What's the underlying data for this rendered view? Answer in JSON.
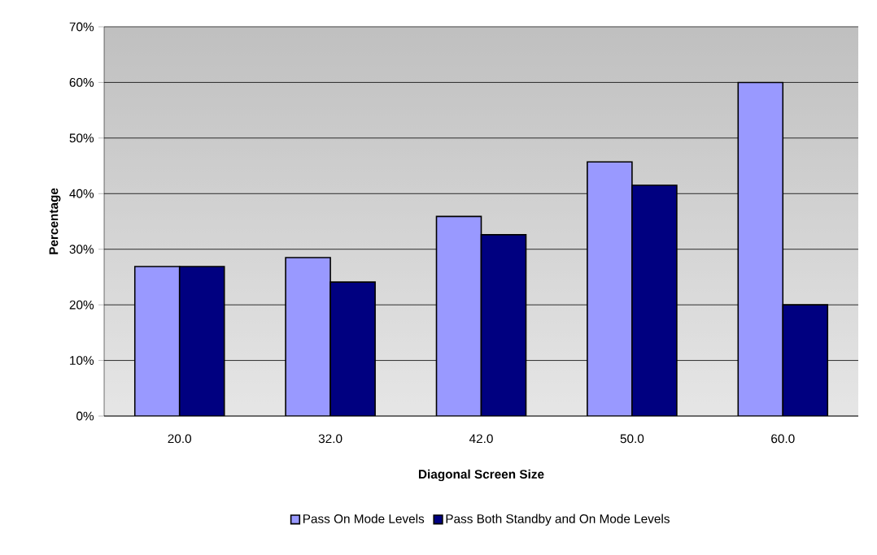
{
  "chart_data": {
    "type": "bar",
    "xlabel": "Diagonal Screen Size",
    "ylabel": "Percentage",
    "categories": [
      "20.0",
      "32.0",
      "42.0",
      "50.0",
      "60.0"
    ],
    "series": [
      {
        "name": "Pass On Mode Levels",
        "color": "#9999ff",
        "values": [
          26.9,
          28.5,
          35.9,
          45.7,
          60
        ]
      },
      {
        "name": "Pass Both Standby and On Mode Levels",
        "color": "#000080",
        "values": [
          26.9,
          24.1,
          32.6,
          41.5,
          20
        ]
      }
    ],
    "ylim": [
      0,
      70
    ],
    "yticks": [
      {
        "value": 0,
        "label": "0%"
      },
      {
        "value": 10,
        "label": "10%"
      },
      {
        "value": 20,
        "label": "20%"
      },
      {
        "value": 30,
        "label": "30%"
      },
      {
        "value": 40,
        "label": "40%"
      },
      {
        "value": 50,
        "label": "50%"
      },
      {
        "value": 60,
        "label": "60%"
      },
      {
        "value": 70,
        "label": "70%"
      }
    ],
    "grid": "y",
    "legend": "bottom"
  }
}
